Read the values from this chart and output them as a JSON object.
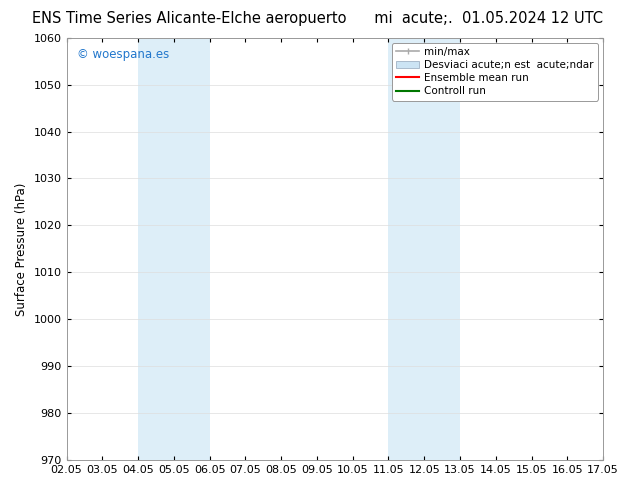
{
  "title_left": "ENS Time Series Alicante-Elche aeropuerto",
  "title_right": "mi  acute;.  01.05.2024 12 UTC",
  "ylabel": "Surface Pressure (hPa)",
  "xlim_dates": [
    "02.05",
    "03.05",
    "04.05",
    "05.05",
    "06.05",
    "07.05",
    "08.05",
    "09.05",
    "10.05",
    "11.05",
    "12.05",
    "13.05",
    "14.05",
    "15.05",
    "16.05",
    "17.05"
  ],
  "ylim": [
    970,
    1060
  ],
  "yticks": [
    970,
    980,
    990,
    1000,
    1010,
    1020,
    1030,
    1040,
    1050,
    1060
  ],
  "shaded_bands": [
    {
      "xmin": 2,
      "xmax": 4,
      "color": "#ddeef8"
    },
    {
      "xmin": 9,
      "xmax": 11,
      "color": "#ddeef8"
    }
  ],
  "watermark": "© woespana.es",
  "watermark_color": "#2277cc",
  "legend_label1": "min/max",
  "legend_label2": "Desviaci acute;n est  acute;ndar",
  "legend_label3": "Ensemble mean run",
  "legend_label4": "Controll run",
  "legend_color1": "#aaaaaa",
  "legend_color2": "#cce4f4",
  "legend_color3": "#ff0000",
  "legend_color4": "#007700",
  "background_color": "#ffffff",
  "grid_color": "#dddddd",
  "title_fontsize": 10.5,
  "axis_fontsize": 8.5,
  "tick_fontsize": 8,
  "legend_fontsize": 7.5
}
